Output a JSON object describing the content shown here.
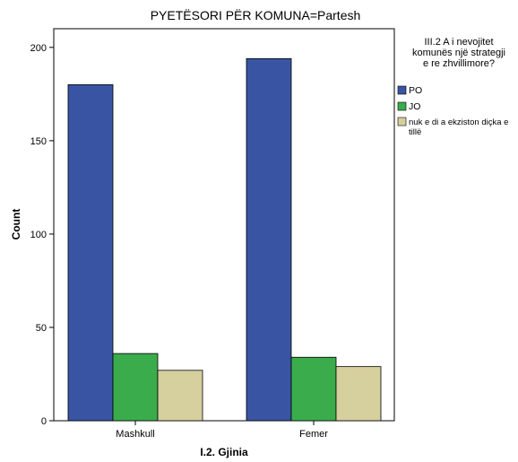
{
  "chart_data": {
    "type": "bar",
    "title": "PYETËSORI PËR KOMUNA=Partesh",
    "xlabel": "I.2. Gjinia",
    "ylabel": "Count",
    "categories": [
      "Mashkull",
      "Femer"
    ],
    "ylim": [
      0,
      210
    ],
    "yticks": [
      0,
      50,
      100,
      150,
      200
    ],
    "grid": false,
    "legend": {
      "placement": "right",
      "title_lines": [
        "III.2 A i nevojitet",
        "komunës një strategji",
        "e re zhvillimore?"
      ]
    },
    "series": [
      {
        "name": "PO",
        "values": [
          180,
          194
        ],
        "color": "#3a54a4"
      },
      {
        "name": "JO",
        "values": [
          36,
          34
        ],
        "color": "#3aac4c"
      },
      {
        "name": "nuk e di a ekziston diçka e tillë",
        "name_lines": [
          "nuk e di a ekziston diçka e",
          "tillë"
        ],
        "values": [
          27,
          29
        ],
        "color": "#d6cf9e"
      }
    ]
  }
}
